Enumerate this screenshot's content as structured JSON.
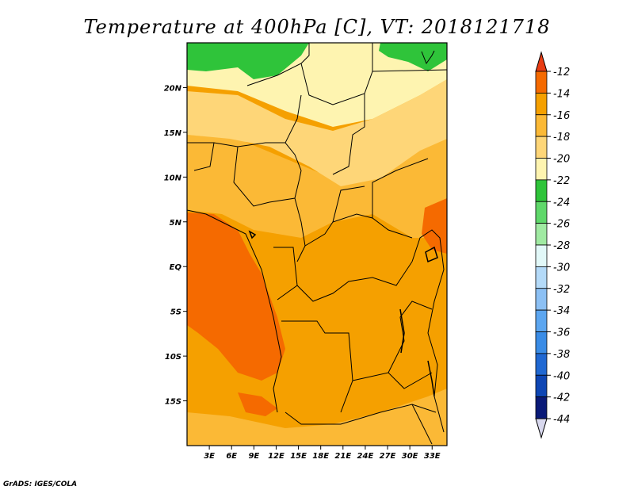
{
  "chart_data": {
    "type": "heatmap",
    "title": "Temperature at 400hPa [C], VT: 2018121718",
    "variable": "Temperature",
    "level": "400hPa",
    "units": "C",
    "valid_time": "2018121718",
    "x_ticks": [
      "3E",
      "6E",
      "9E",
      "12E",
      "15E",
      "18E",
      "21E",
      "24E",
      "27E",
      "30E",
      "33E"
    ],
    "y_ticks": [
      "20N",
      "15N",
      "10N",
      "5N",
      "EQ",
      "5S",
      "10S",
      "15S"
    ],
    "x_range": [
      0,
      35
    ],
    "y_range": [
      -20,
      25
    ],
    "colorbar": {
      "levels": [
        "-12",
        "-14",
        "-16",
        "-18",
        "-20",
        "-22",
        "-24",
        "-26",
        "-28",
        "-30",
        "-32",
        "-34",
        "-36",
        "-38",
        "-40",
        "-42",
        "-44"
      ],
      "colors": [
        "#e83c14",
        "#f56a00",
        "#f5a000",
        "#fbb936",
        "#fed678",
        "#fef4b0",
        "#2fc43a",
        "#5fd86a",
        "#a0eaa2",
        "#e2f8f8",
        "#b4daf8",
        "#8cc0f4",
        "#5ca6f0",
        "#3a8ce6",
        "#2068d2",
        "#0e46b4",
        "#0a1a78",
        "#d8d8ee"
      ]
    },
    "regions": [
      {
        "name": "northern-green-cold",
        "value_band": "-22 to -24"
      },
      {
        "name": "sahel-pale-yellow",
        "value_band": "-20 to -22"
      },
      {
        "name": "central-orange",
        "value_band": "-16 to -14"
      },
      {
        "name": "atlantic-coast-warm",
        "value_band": "-14 to -12"
      }
    ]
  },
  "credit": "GrADS: IGES/COLA"
}
